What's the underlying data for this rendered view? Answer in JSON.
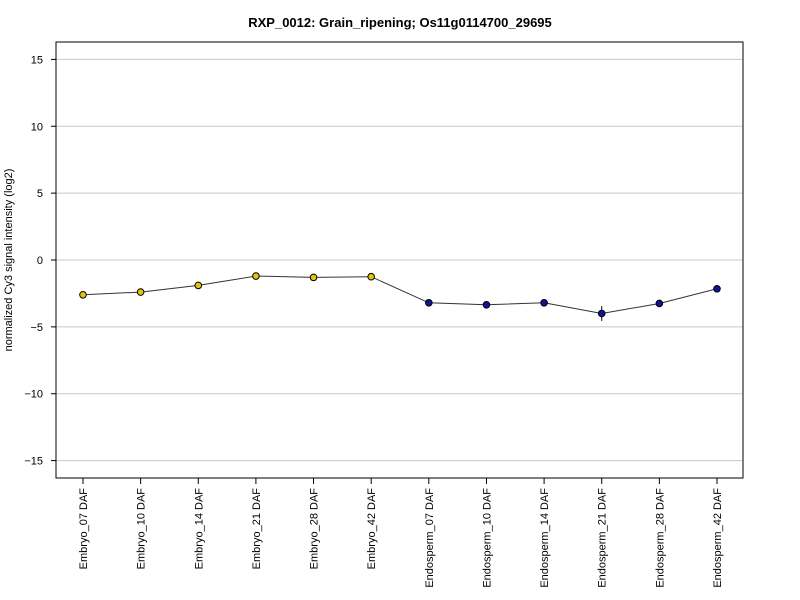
{
  "chart_data": {
    "type": "line",
    "title": "RXP_0012: Grain_ripening; Os11g0114700_29695",
    "xlabel": "",
    "ylabel": "normalized Cy3 signal intensity (log2)",
    "ylim": [
      -16.3,
      16.3
    ],
    "yticks": [
      -15,
      -10,
      -5,
      0,
      5,
      10,
      15
    ],
    "grid": true,
    "legend": "none",
    "categories": [
      "Embryo_07 DAF",
      "Embryo_10 DAF",
      "Embryo_14 DAF",
      "Embryo_21 DAF",
      "Embryo_28 DAF",
      "Embryo_42 DAF",
      "Endosperm_07 DAF",
      "Endosperm_10 DAF",
      "Endosperm_14 DAF",
      "Endosperm_21 DAF",
      "Endosperm_28 DAF",
      "Endosperm_42 DAF"
    ],
    "series": [
      {
        "values": [
          -2.6,
          -2.4,
          -1.9,
          -1.2,
          -1.3,
          -1.25,
          -3.2,
          -3.35,
          -3.2,
          -4.0,
          -3.25,
          -2.15
        ],
        "errors": [
          0.1,
          0.1,
          0.1,
          0.1,
          0.1,
          0.1,
          0.25,
          0.15,
          0.15,
          0.55,
          0.1,
          0.1
        ],
        "point_colors": [
          "#e3c30e",
          "#e3c30e",
          "#e3c30e",
          "#e3c30e",
          "#e3c30e",
          "#e3c30e",
          "#10139a",
          "#10139a",
          "#10139a",
          "#10139a",
          "#10139a",
          "#10139a"
        ],
        "line_color": "#333333"
      }
    ],
    "colors": {
      "embryo": "#e3c30e",
      "endosperm": "#10139a",
      "grid": "#c8c8c8",
      "axis": "#000000"
    }
  }
}
